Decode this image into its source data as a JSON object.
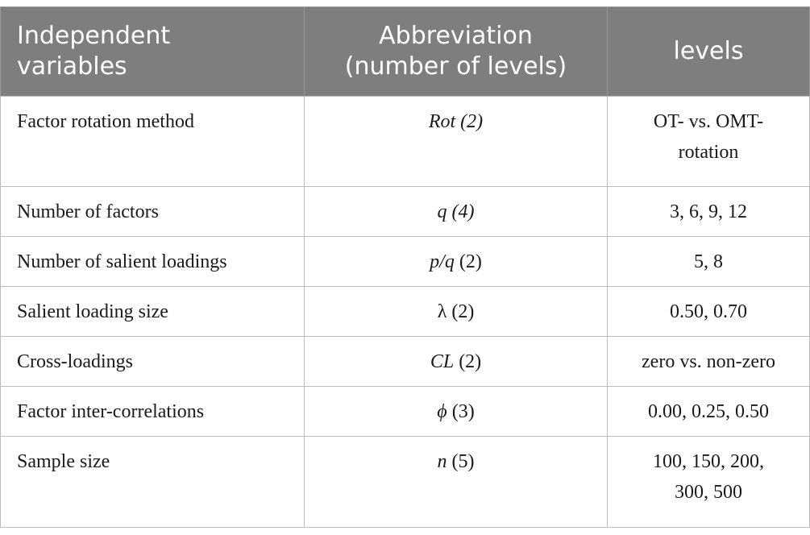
{
  "header": {
    "col1": [
      "Independent",
      "variables"
    ],
    "col2": [
      "Abbreviation",
      "(number of levels)"
    ],
    "col3": "levels"
  },
  "rows": [
    {
      "variable": "Factor rotation method",
      "abbr": "Rot",
      "count": "(2)",
      "abbr_count_italic": true,
      "levels": [
        "OT- vs. OMT-",
        "rotation"
      ]
    },
    {
      "variable": "Number of factors",
      "abbr": "q",
      "count": "(4)",
      "abbr_count_italic": true,
      "levels": [
        "3, 6, 9, 12"
      ]
    },
    {
      "variable": "Number of salient loadings",
      "abbr": "p/q",
      "count": "(2)",
      "abbr_count_italic": false,
      "levels": [
        "5, 8"
      ]
    },
    {
      "variable": "Salient loading size",
      "abbr": "λ",
      "count": "(2)",
      "abbr_count_italic": false,
      "levels": [
        "0.50, 0.70"
      ]
    },
    {
      "variable": "Cross-loadings",
      "abbr": "CL",
      "count": "(2)",
      "abbr_count_italic": false,
      "levels": [
        "zero vs. non-zero"
      ]
    },
    {
      "variable": "Factor inter-correlations",
      "abbr": "ϕ",
      "count": "(3)",
      "abbr_count_italic": false,
      "levels": [
        "0.00, 0.25, 0.50"
      ]
    },
    {
      "variable": "Sample size",
      "abbr": "n",
      "count": "(5)",
      "abbr_count_italic": false,
      "levels": [
        "100, 150, 200,",
        "300, 500"
      ]
    }
  ],
  "colors": {
    "header_bg": "#7e7e7e",
    "header_text": "#ffffff",
    "grid": "#bdbdbd"
  }
}
